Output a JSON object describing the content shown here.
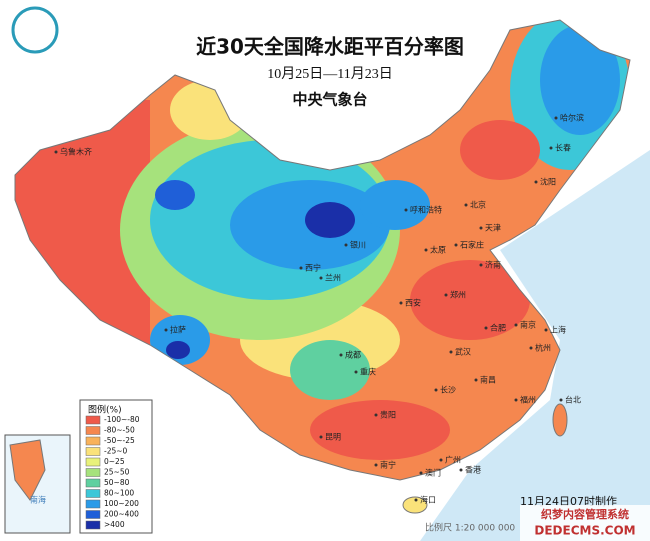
{
  "header": {
    "title": "近30天全国降水距平百分率图",
    "dates": "10月25日—11月23日",
    "agency": "中央气象台"
  },
  "legend": {
    "title": "图例(%)",
    "items": [
      {
        "label": "-100~-80",
        "color": "#ef5a4a"
      },
      {
        "label": "-80~-50",
        "color": "#f5874f"
      },
      {
        "label": "-50~-25",
        "color": "#f8b25a"
      },
      {
        "label": "-25~0",
        "color": "#fae27a"
      },
      {
        "label": "0~25",
        "color": "#e8f27a"
      },
      {
        "label": "25~50",
        "color": "#a6e27c"
      },
      {
        "label": "50~80",
        "color": "#5fd0a0"
      },
      {
        "label": "80~100",
        "color": "#3cc7d8"
      },
      {
        "label": "100~200",
        "color": "#2a9be8"
      },
      {
        "label": "200~400",
        "color": "#1f5fd8"
      },
      {
        "label": ">400",
        "color": "#1a2fa8"
      }
    ]
  },
  "cities": [
    "乌鲁木齐",
    "哈尔滨",
    "长春",
    "沈阳",
    "呼和浩特",
    "北京",
    "天津",
    "石家庄",
    "太原",
    "济南",
    "银川",
    "西宁",
    "兰州",
    "西安",
    "郑州",
    "合肥",
    "南京",
    "上海",
    "杭州",
    "武汉",
    "成都",
    "重庆",
    "长沙",
    "南昌",
    "福州",
    "台北",
    "贵阳",
    "昆明",
    "南宁",
    "广州",
    "香港",
    "澳门",
    "海口",
    "拉萨"
  ],
  "inset": {
    "label": "南海"
  },
  "footer": {
    "made": "11月24日07时制作",
    "scale": "比例尺 1:20 000 000"
  },
  "watermark": {
    "cn": "织梦内容管理系统",
    "en": "DEDECMS.COM"
  }
}
